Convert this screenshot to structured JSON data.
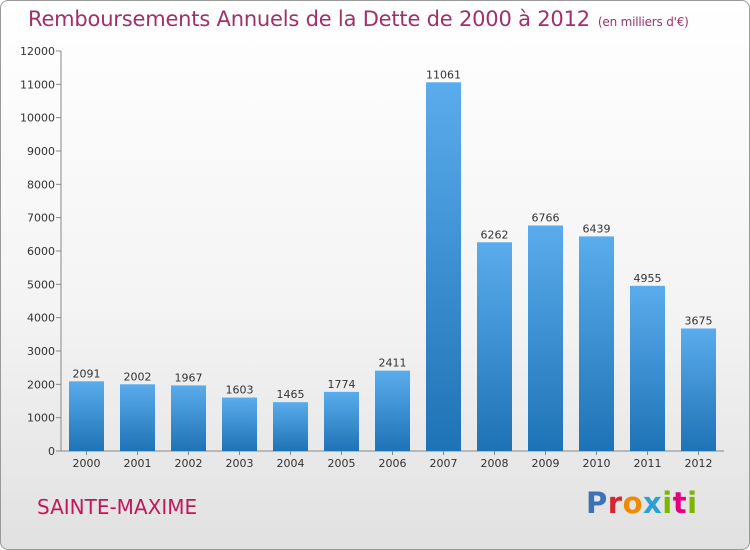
{
  "title": "Remboursements Annuels de la Dette de 2000 à 2012",
  "unit": "(en milliers d'€)",
  "town": "SAINTE-MAXIME",
  "logo": {
    "letters": [
      "P",
      "r",
      "o",
      "x",
      "i",
      "t",
      "i"
    ],
    "colors": [
      "#3b73b9",
      "#d9232d",
      "#f08a00",
      "#2a9fd8",
      "#7ab800",
      "#e4007c",
      "#7ab800"
    ]
  },
  "colors": {
    "bar_top": "#5aacec",
    "bar_bottom": "#1e73b6",
    "title": "#a0306a",
    "town": "#c2185b"
  },
  "chart_data": {
    "type": "bar",
    "categories": [
      "2000",
      "2001",
      "2002",
      "2003",
      "2004",
      "2005",
      "2006",
      "2007",
      "2008",
      "2009",
      "2010",
      "2011",
      "2012"
    ],
    "values": [
      2091,
      2002,
      1967,
      1603,
      1465,
      1774,
      2411,
      11061,
      6262,
      6766,
      6439,
      4955,
      3675
    ],
    "ylim": [
      0,
      12000
    ],
    "yticks": [
      0,
      1000,
      2000,
      3000,
      4000,
      5000,
      6000,
      7000,
      8000,
      9000,
      10000,
      11000,
      12000
    ],
    "grid": false,
    "xlabel": "",
    "ylabel": ""
  }
}
